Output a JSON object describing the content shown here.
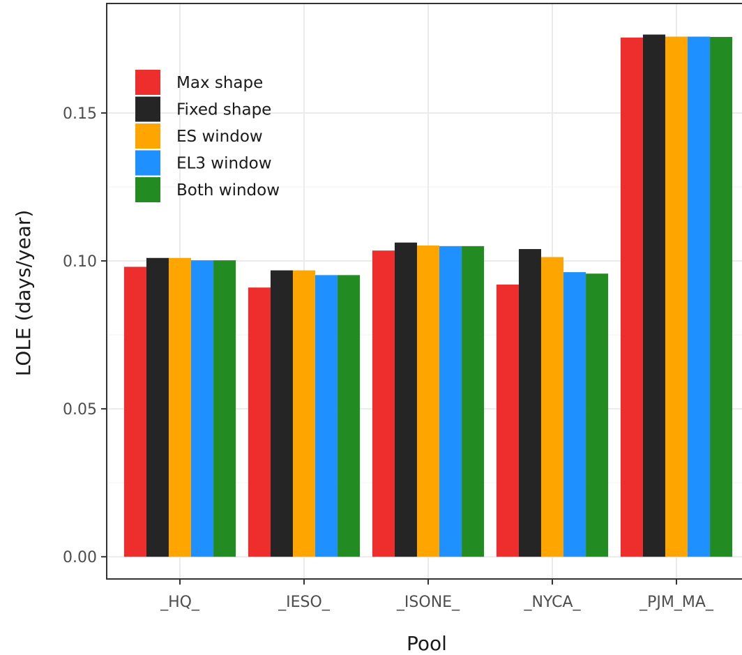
{
  "chart_data": {
    "type": "bar",
    "title": "",
    "xlabel": "Pool",
    "ylabel": "LOLE (days/year)",
    "categories": [
      "_HQ_",
      "_IESO_",
      "_ISONE_",
      "_NYCA_",
      "_PJM_MA_"
    ],
    "series": [
      {
        "name": "Max shape",
        "color": "#ee2d2d",
        "values": [
          0.098,
          0.091,
          0.1035,
          0.092,
          0.1755
        ]
      },
      {
        "name": "Fixed shape",
        "color": "#252525",
        "values": [
          0.101,
          0.0968,
          0.1062,
          0.104,
          0.1765
        ]
      },
      {
        "name": "ES window",
        "color": "#ffa500",
        "values": [
          0.101,
          0.0968,
          0.1052,
          0.1013,
          0.1758
        ]
      },
      {
        "name": "EL3 window",
        "color": "#1e90ff",
        "values": [
          0.1002,
          0.0952,
          0.105,
          0.0962,
          0.1758
        ]
      },
      {
        "name": "Both window",
        "color": "#228b22",
        "values": [
          0.1002,
          0.0952,
          0.105,
          0.0957,
          0.1757
        ]
      }
    ],
    "yticks": [
      0.0,
      0.05,
      0.1,
      0.15
    ],
    "ytick_labels": [
      "0.00",
      "0.05",
      "0.10",
      "0.15"
    ],
    "ylim": [
      -0.0075,
      0.187
    ],
    "grid": true,
    "legend_position": "top-left"
  }
}
